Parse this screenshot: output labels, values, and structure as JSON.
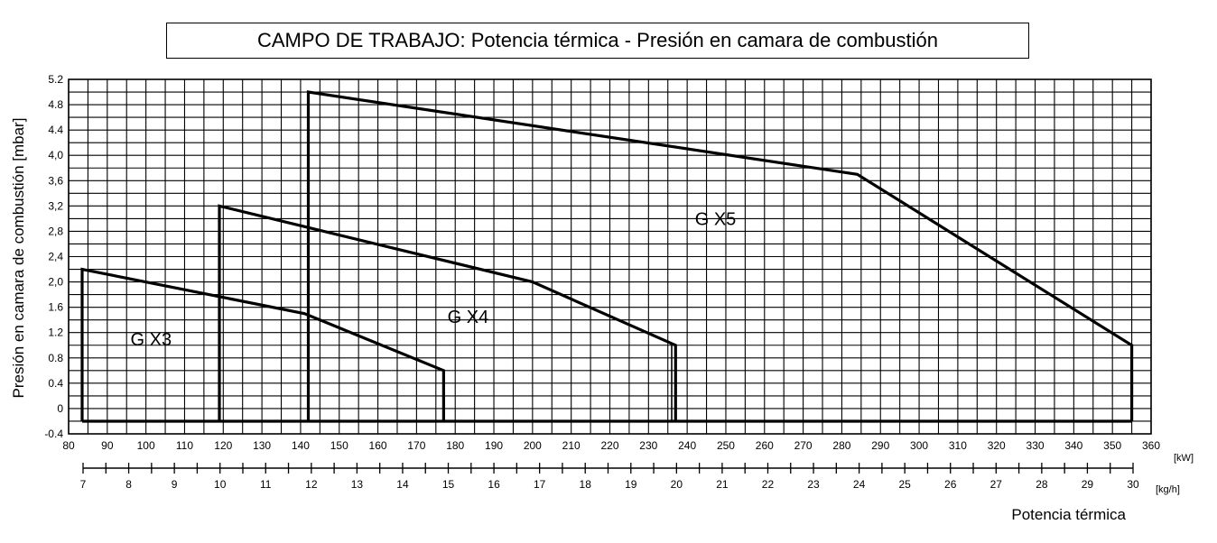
{
  "chart_data": {
    "type": "area",
    "title": "CAMPO DE TRABAJO: Potencia térmica - Presión en camara de combustión",
    "ylabel": "Presión en camara de combustión [mbar]",
    "xlabel": "Potencia térmica",
    "x_unit": "[kW]",
    "x2_unit": "[kg/h]",
    "xlim": [
      80,
      360
    ],
    "ylim": [
      -0.4,
      5.2
    ],
    "x_ticks": [
      80,
      90,
      100,
      110,
      120,
      130,
      140,
      150,
      160,
      170,
      180,
      190,
      200,
      210,
      220,
      230,
      240,
      250,
      260,
      270,
      280,
      290,
      300,
      310,
      320,
      330,
      340,
      350,
      360
    ],
    "y_ticks": [
      -0.4,
      0,
      0.4,
      0.8,
      1.2,
      1.6,
      2.0,
      2.4,
      2.8,
      3.2,
      3.6,
      4.0,
      4.4,
      4.8,
      5.2
    ],
    "y_tick_labels": [
      "-0.4",
      "0",
      "0.4",
      "0.8",
      "1.2",
      "1.6",
      "2,0",
      "2,4",
      "2,8",
      "3,2",
      "3,6",
      "4,0",
      "4.4",
      "4.8",
      "5.2"
    ],
    "x2_ticks": [
      7,
      8,
      9,
      10,
      11,
      12,
      13,
      14,
      15,
      16,
      17,
      18,
      19,
      20,
      21,
      22,
      23,
      24,
      25,
      26,
      27,
      28,
      29,
      30
    ],
    "grid": true,
    "series": [
      {
        "name": "G X3",
        "label_at": [
          178,
          1.0
        ],
        "points": [
          [
            83.5,
            -0.2
          ],
          [
            83.5,
            2.2
          ],
          [
            141,
            1.5
          ],
          [
            177,
            0.6
          ],
          [
            177,
            -0.2
          ]
        ]
      },
      {
        "name": "G X4",
        "label_at": [
          286,
          1.3
        ],
        "points": [
          [
            119,
            -0.2
          ],
          [
            119,
            3.2
          ],
          [
            200,
            2.0
          ],
          [
            237,
            1.0
          ],
          [
            237,
            -0.2
          ]
        ]
      },
      {
        "name": "G X5",
        "label_at": [
          440,
          2.95
        ],
        "points": [
          [
            142,
            -0.2
          ],
          [
            142,
            5.0
          ],
          [
            284,
            3.7
          ],
          [
            355,
            1.0
          ],
          [
            355,
            -0.2
          ]
        ]
      }
    ],
    "inner_lines": [
      [
        [
          119,
          1.8
        ],
        [
          119,
          3.2
        ]
      ],
      [
        [
          142,
          2.85
        ],
        [
          142,
          5.0
        ]
      ],
      [
        [
          236,
          -0.2
        ],
        [
          236,
          1.0
        ]
      ]
    ]
  }
}
